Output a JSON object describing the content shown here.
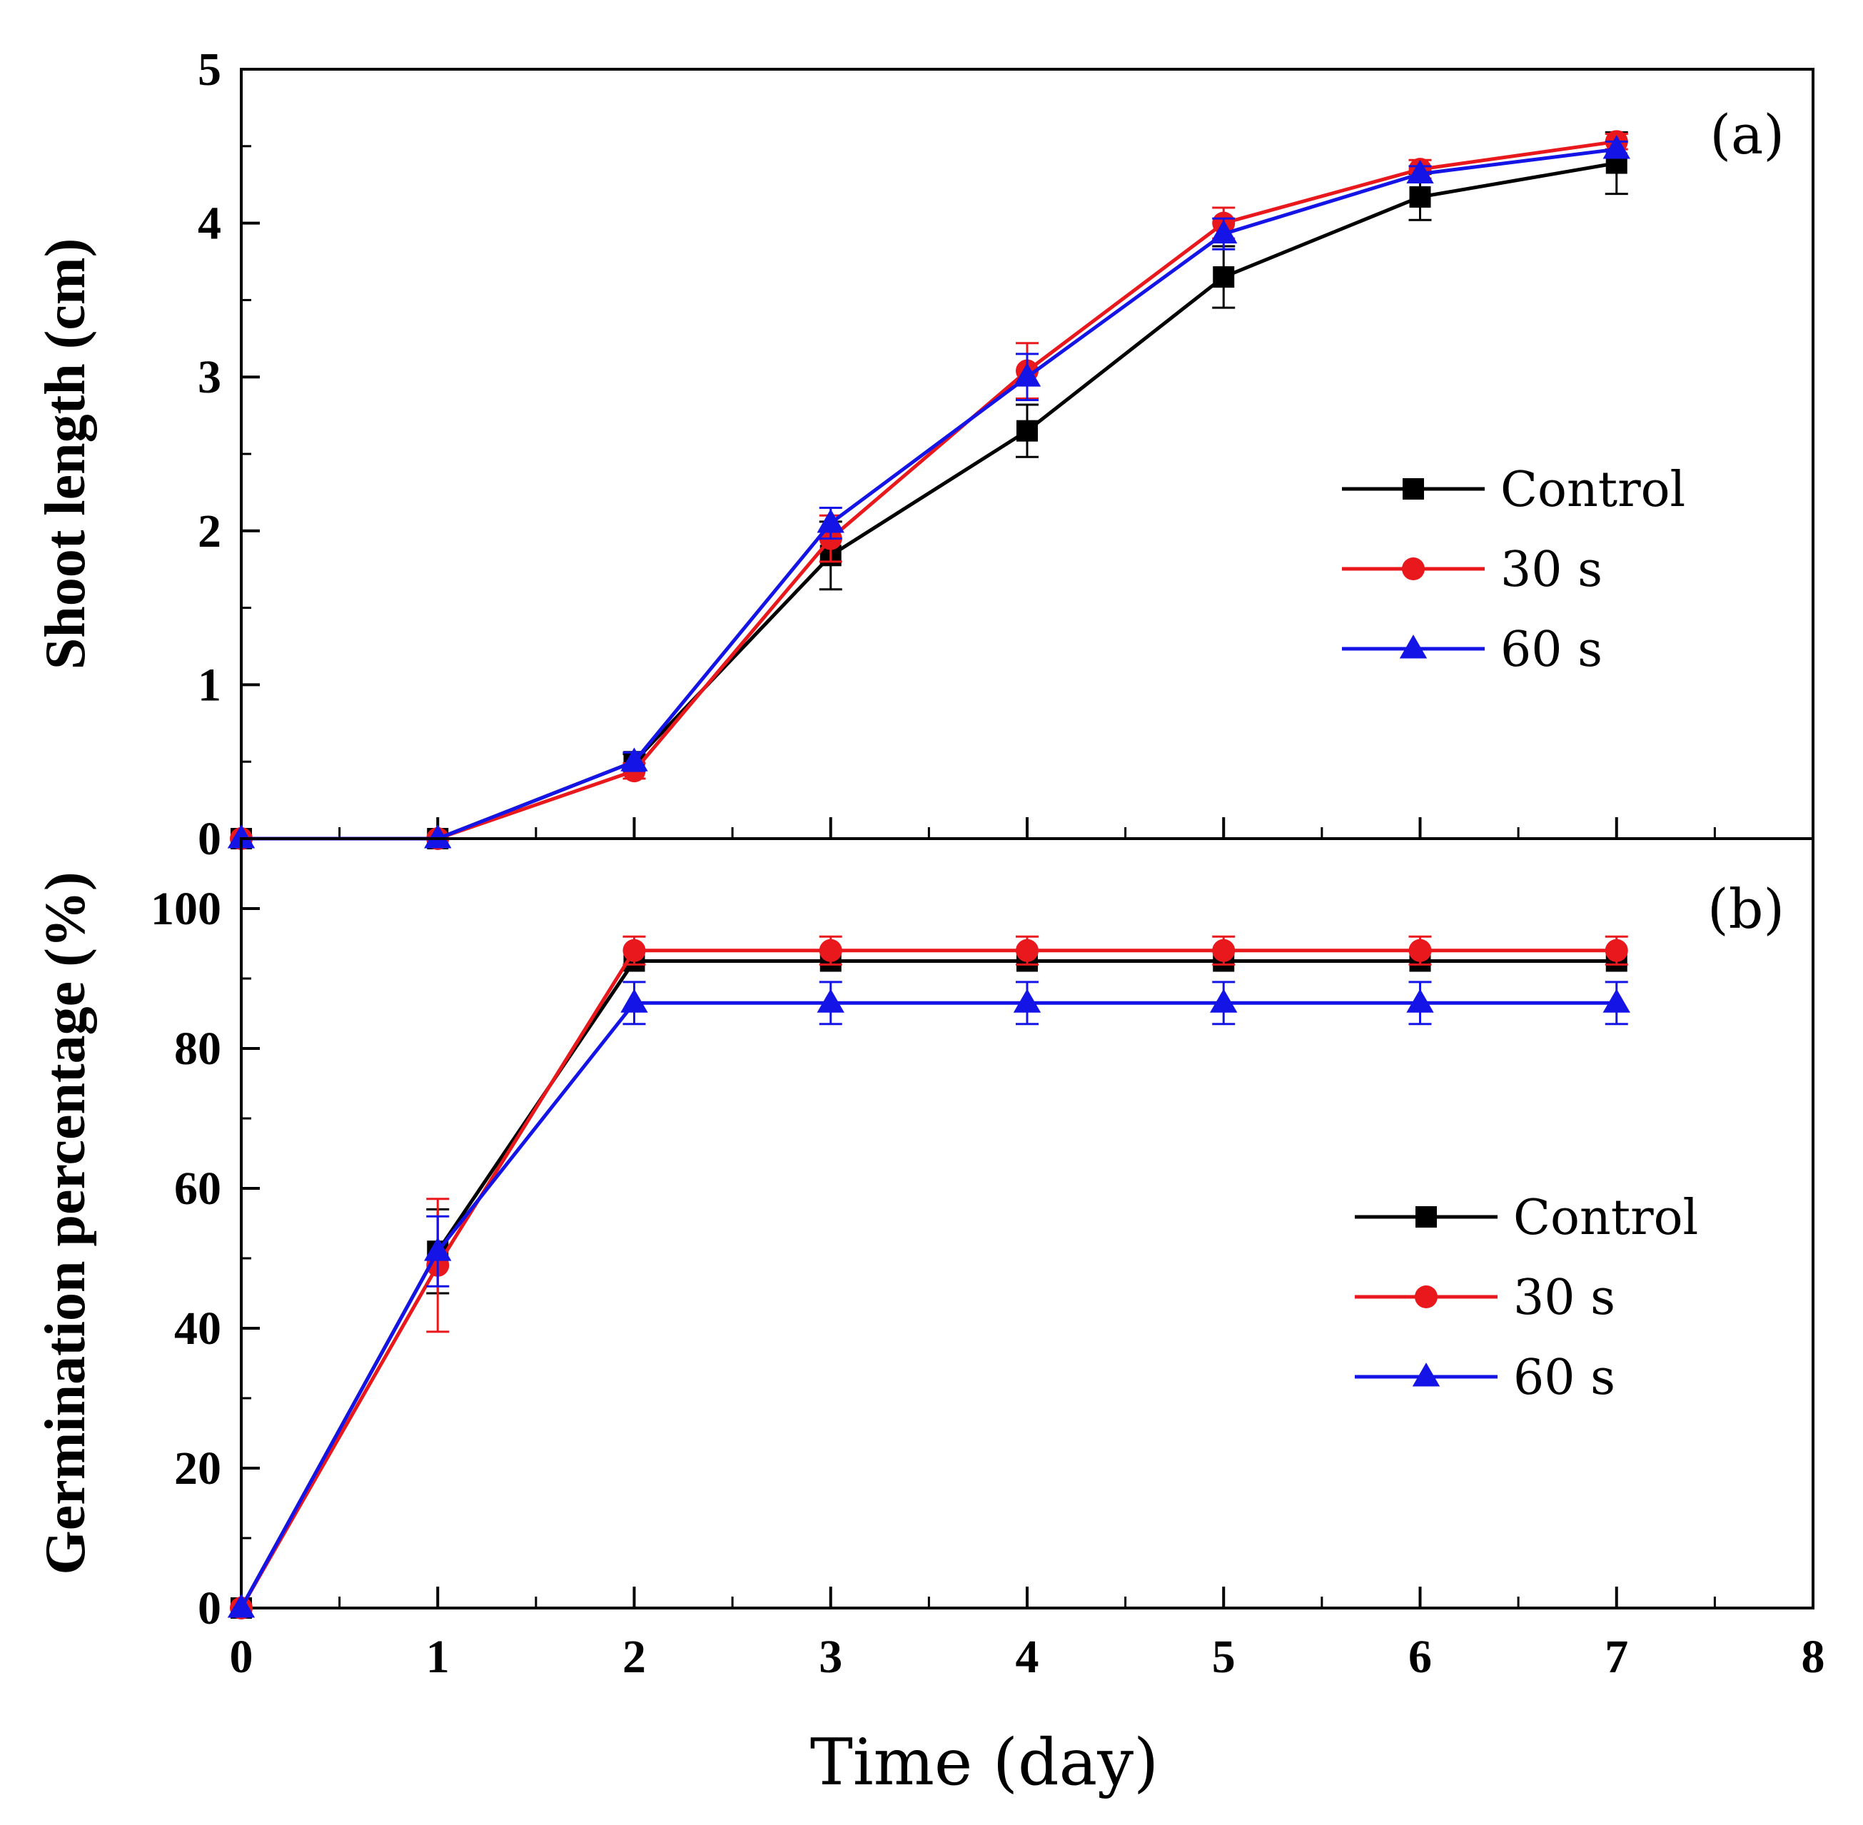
{
  "chart_data": [
    {
      "type": "line",
      "panel_label": "(a)",
      "ylabel": "Shoot length (cm)",
      "xlabel": "",
      "xlim": [
        0,
        8
      ],
      "ylim": [
        0,
        5
      ],
      "x_ticks": [
        0,
        1,
        2,
        3,
        4,
        5,
        6,
        7,
        8
      ],
      "y_ticks": [
        0,
        1,
        2,
        3,
        4,
        5
      ],
      "legend_position": "right-middle",
      "series": [
        {
          "name": "Control",
          "color": "#000000",
          "marker": "square",
          "x": [
            0,
            1,
            2,
            3,
            4,
            5,
            6,
            7
          ],
          "y": [
            0,
            0,
            0.5,
            1.84,
            2.65,
            3.65,
            4.17,
            4.39
          ],
          "err": [
            0,
            0,
            0.05,
            0.22,
            0.17,
            0.2,
            0.15,
            0.2
          ]
        },
        {
          "name": "30 s",
          "color": "#e8181c",
          "marker": "circle",
          "x": [
            0,
            1,
            2,
            3,
            4,
            5,
            6,
            7
          ],
          "y": [
            0,
            0,
            0.44,
            1.95,
            3.04,
            4.0,
            4.35,
            4.53
          ],
          "err": [
            0,
            0,
            0.05,
            0.15,
            0.18,
            0.1,
            0.06,
            0.05
          ]
        },
        {
          "name": "60 s",
          "color": "#1414e6",
          "marker": "triangle",
          "x": [
            0,
            1,
            2,
            3,
            4,
            5,
            6,
            7
          ],
          "y": [
            0,
            0,
            0.5,
            2.05,
            3.0,
            3.93,
            4.32,
            4.48
          ],
          "err": [
            0,
            0,
            0.06,
            0.1,
            0.15,
            0.1,
            0.05,
            0.05
          ]
        }
      ]
    },
    {
      "type": "line",
      "panel_label": "(b)",
      "ylabel": "Germination percentage (%)",
      "xlabel": "Time (day)",
      "xlim": [
        0,
        8
      ],
      "ylim": [
        0,
        110
      ],
      "x_ticks": [
        0,
        1,
        2,
        3,
        4,
        5,
        6,
        7,
        8
      ],
      "y_ticks": [
        0,
        20,
        40,
        60,
        80,
        100
      ],
      "legend_position": "right-middle",
      "series": [
        {
          "name": "Control",
          "color": "#000000",
          "marker": "square",
          "x": [
            0,
            1,
            2,
            3,
            4,
            5,
            6,
            7
          ],
          "y": [
            0,
            51,
            92.5,
            92.5,
            92.5,
            92.5,
            92.5,
            92.5
          ],
          "err": [
            0,
            6,
            0,
            0,
            0,
            0,
            0,
            0
          ]
        },
        {
          "name": "30 s",
          "color": "#e8181c",
          "marker": "circle",
          "x": [
            0,
            1,
            2,
            3,
            4,
            5,
            6,
            7
          ],
          "y": [
            0,
            49,
            94,
            94,
            94,
            94,
            94,
            94
          ],
          "err": [
            0,
            9.5,
            2,
            2,
            2,
            2,
            2,
            2
          ]
        },
        {
          "name": "60 s",
          "color": "#1414e6",
          "marker": "triangle",
          "x": [
            0,
            1,
            2,
            3,
            4,
            5,
            6,
            7
          ],
          "y": [
            0,
            51,
            86.5,
            86.5,
            86.5,
            86.5,
            86.5,
            86.5
          ],
          "err": [
            0,
            5,
            3,
            3,
            3,
            3,
            3,
            3
          ]
        }
      ]
    }
  ]
}
